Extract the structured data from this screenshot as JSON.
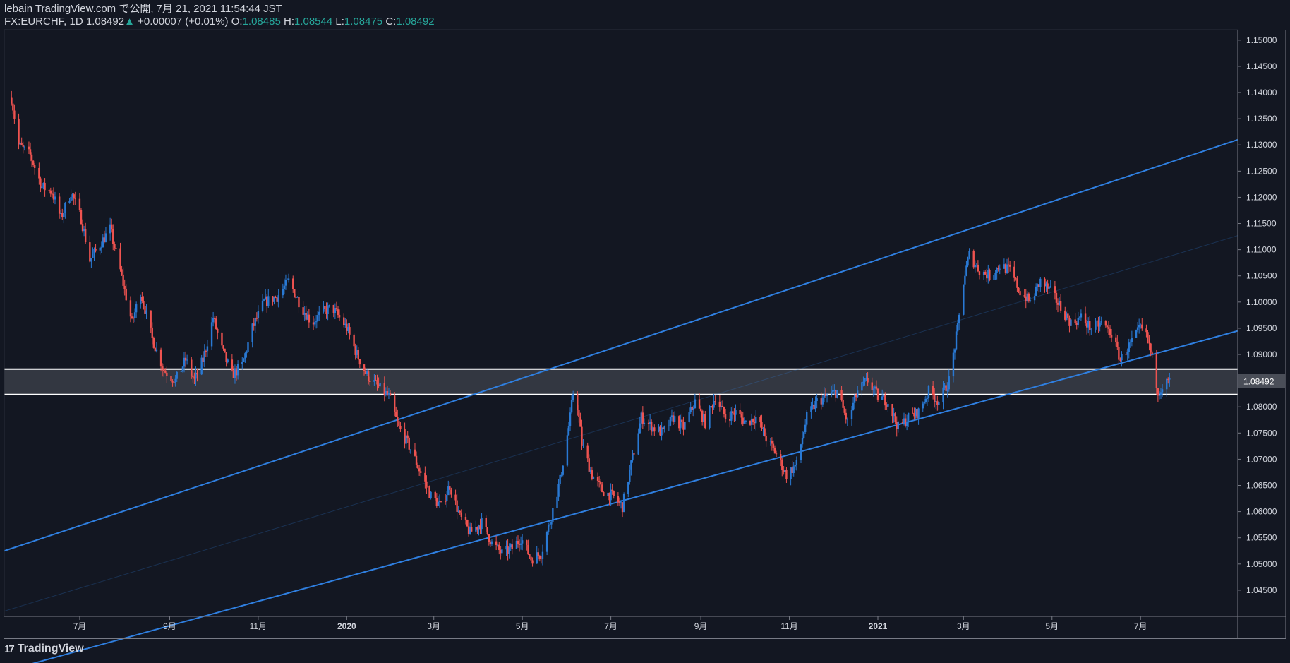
{
  "header": {
    "publish_line": "lebain TradingView.com で公開, 7月 21, 2021 11:54:44 JST",
    "symbol": "FX:EURCHF, 1D",
    "last": "1.08492",
    "change": "+0.00007 (+0.01%)",
    "o_label": "O:",
    "o": "1.08485",
    "h_label": "H:",
    "h": "1.08544",
    "l_label": "L:",
    "l": "1.08475",
    "c_label": "C:",
    "c": "1.08492"
  },
  "brand": {
    "name": "TradingView",
    "icon": "tradingview-logo-icon"
  },
  "colors": {
    "background": "#131722",
    "up_candle": "#2979d4",
    "down_candle": "#ef5350",
    "trendline": "#2f7fe0",
    "zone_fill": "#3a3d46",
    "zone_line": "#ffffff",
    "text": "#d1d4dc",
    "up_text": "#26a69a"
  },
  "chart_data": {
    "type": "candlestick",
    "ylim": [
      1.04,
      1.152
    ],
    "y_ticks": [
      "1.15000",
      "1.14500",
      "1.14000",
      "1.13500",
      "1.13000",
      "1.12500",
      "1.12000",
      "1.11500",
      "1.11000",
      "1.10500",
      "1.10000",
      "1.09500",
      "1.09000",
      "1.08500",
      "1.08000",
      "1.07500",
      "1.07000",
      "1.06500",
      "1.06000",
      "1.05500",
      "1.05000",
      "1.04500"
    ],
    "x_ticks": [
      {
        "label": "7月",
        "date": "2019-07-01"
      },
      {
        "label": "9月",
        "date": "2019-09-01"
      },
      {
        "label": "11月",
        "date": "2019-11-01"
      },
      {
        "label": "2020",
        "date": "2020-01-01"
      },
      {
        "label": "3月",
        "date": "2020-03-01"
      },
      {
        "label": "5月",
        "date": "2020-05-01"
      },
      {
        "label": "7月",
        "date": "2020-07-01"
      },
      {
        "label": "9月",
        "date": "2020-09-01"
      },
      {
        "label": "11月",
        "date": "2020-11-01"
      },
      {
        "label": "2021",
        "date": "2021-01-01"
      },
      {
        "label": "3月",
        "date": "2021-03-01"
      },
      {
        "label": "5月",
        "date": "2021-05-01"
      },
      {
        "label": "7月",
        "date": "2021-07-01"
      }
    ],
    "price_label": "1.08492",
    "close_path": [
      [
        "2019-05-15",
        1.139
      ],
      [
        "2019-05-20",
        1.13
      ],
      [
        "2019-05-28",
        1.128
      ],
      [
        "2019-06-05",
        1.122
      ],
      [
        "2019-06-12",
        1.121
      ],
      [
        "2019-06-18",
        1.116
      ],
      [
        "2019-06-25",
        1.121
      ],
      [
        "2019-07-02",
        1.116
      ],
      [
        "2019-07-08",
        1.108
      ],
      [
        "2019-07-15",
        1.111
      ],
      [
        "2019-07-22",
        1.114
      ],
      [
        "2019-07-29",
        1.106
      ],
      [
        "2019-08-06",
        1.096
      ],
      [
        "2019-08-12",
        1.102
      ],
      [
        "2019-08-20",
        1.093
      ],
      [
        "2019-08-28",
        1.087
      ],
      [
        "2019-09-05",
        1.085
      ],
      [
        "2019-09-12",
        1.089
      ],
      [
        "2019-09-18",
        1.085
      ],
      [
        "2019-09-24",
        1.089
      ],
      [
        "2019-10-01",
        1.097
      ],
      [
        "2019-10-07",
        1.091
      ],
      [
        "2019-10-14",
        1.086
      ],
      [
        "2019-10-21",
        1.088
      ],
      [
        "2019-10-28",
        1.095
      ],
      [
        "2019-11-05",
        1.1
      ],
      [
        "2019-11-14",
        1.101
      ],
      [
        "2019-11-22",
        1.104
      ],
      [
        "2019-12-01",
        1.099
      ],
      [
        "2019-12-08",
        1.096
      ],
      [
        "2019-12-15",
        1.098
      ],
      [
        "2019-12-22",
        1.099
      ],
      [
        "2020-01-01",
        1.095
      ],
      [
        "2020-01-08",
        1.09
      ],
      [
        "2020-01-15",
        1.086
      ],
      [
        "2020-01-22",
        1.084
      ],
      [
        "2020-01-30",
        1.082
      ],
      [
        "2020-02-06",
        1.076
      ],
      [
        "2020-02-14",
        1.072
      ],
      [
        "2020-02-20",
        1.068
      ],
      [
        "2020-02-28",
        1.063
      ],
      [
        "2020-03-06",
        1.061
      ],
      [
        "2020-03-12",
        1.065
      ],
      [
        "2020-03-19",
        1.059
      ],
      [
        "2020-03-26",
        1.056
      ],
      [
        "2020-04-03",
        1.058
      ],
      [
        "2020-04-10",
        1.054
      ],
      [
        "2020-04-17",
        1.052
      ],
      [
        "2020-04-24",
        1.053
      ],
      [
        "2020-04-30",
        1.055
      ],
      [
        "2020-05-07",
        1.051
      ],
      [
        "2020-05-14",
        1.052
      ],
      [
        "2020-05-20",
        1.058
      ],
      [
        "2020-05-27",
        1.066
      ],
      [
        "2020-06-03",
        1.078
      ],
      [
        "2020-06-06",
        1.085
      ],
      [
        "2020-06-11",
        1.073
      ],
      [
        "2020-06-18",
        1.067
      ],
      [
        "2020-06-25",
        1.064
      ],
      [
        "2020-07-02",
        1.063
      ],
      [
        "2020-07-09",
        1.061
      ],
      [
        "2020-07-15",
        1.069
      ],
      [
        "2020-07-22",
        1.078
      ],
      [
        "2020-07-30",
        1.076
      ],
      [
        "2020-08-06",
        1.075
      ],
      [
        "2020-08-13",
        1.078
      ],
      [
        "2020-08-20",
        1.076
      ],
      [
        "2020-08-28",
        1.081
      ],
      [
        "2020-09-04",
        1.077
      ],
      [
        "2020-09-11",
        1.082
      ],
      [
        "2020-09-18",
        1.078
      ],
      [
        "2020-09-25",
        1.079
      ],
      [
        "2020-10-02",
        1.077
      ],
      [
        "2020-10-09",
        1.078
      ],
      [
        "2020-10-16",
        1.074
      ],
      [
        "2020-10-23",
        1.071
      ],
      [
        "2020-10-30",
        1.067
      ],
      [
        "2020-11-06",
        1.069
      ],
      [
        "2020-11-13",
        1.078
      ],
      [
        "2020-11-20",
        1.081
      ],
      [
        "2020-11-27",
        1.082
      ],
      [
        "2020-12-04",
        1.083
      ],
      [
        "2020-12-11",
        1.077
      ],
      [
        "2020-12-18",
        1.083
      ],
      [
        "2020-12-25",
        1.085
      ],
      [
        "2021-01-01",
        1.082
      ],
      [
        "2021-01-08",
        1.081
      ],
      [
        "2021-01-15",
        1.076
      ],
      [
        "2021-01-22",
        1.078
      ],
      [
        "2021-01-29",
        1.079
      ],
      [
        "2021-02-05",
        1.083
      ],
      [
        "2021-02-12",
        1.081
      ],
      [
        "2021-02-19",
        1.085
      ],
      [
        "2021-02-25",
        1.095
      ],
      [
        "2021-03-01",
        1.104
      ],
      [
        "2021-03-05",
        1.109
      ],
      [
        "2021-03-12",
        1.106
      ],
      [
        "2021-03-19",
        1.105
      ],
      [
        "2021-03-26",
        1.107
      ],
      [
        "2021-04-02",
        1.106
      ],
      [
        "2021-04-09",
        1.102
      ],
      [
        "2021-04-16",
        1.1
      ],
      [
        "2021-04-23",
        1.104
      ],
      [
        "2021-04-30",
        1.102
      ],
      [
        "2021-05-07",
        1.099
      ],
      [
        "2021-05-14",
        1.096
      ],
      [
        "2021-05-21",
        1.097
      ],
      [
        "2021-05-28",
        1.095
      ],
      [
        "2021-06-04",
        1.096
      ],
      [
        "2021-06-11",
        1.094
      ],
      [
        "2021-06-17",
        1.089
      ],
      [
        "2021-06-24",
        1.092
      ],
      [
        "2021-07-01",
        1.095
      ],
      [
        "2021-07-06",
        1.093
      ],
      [
        "2021-07-09",
        1.089
      ],
      [
        "2021-07-13",
        1.083
      ],
      [
        "2021-07-16",
        1.084
      ],
      [
        "2021-07-21",
        1.0849
      ]
    ],
    "channel_upper": [
      [
        "2019-05-10",
        1.0525
      ],
      [
        "2021-09-06",
        1.131
      ]
    ],
    "channel_lower": [
      [
        "2019-05-10",
        1.0295
      ],
      [
        "2021-09-06",
        1.0945
      ]
    ],
    "channel_mid": [
      [
        "2019-05-10",
        1.041
      ],
      [
        "2021-09-06",
        1.1127
      ]
    ],
    "zone": [
      1.08235,
      1.0872
    ]
  }
}
